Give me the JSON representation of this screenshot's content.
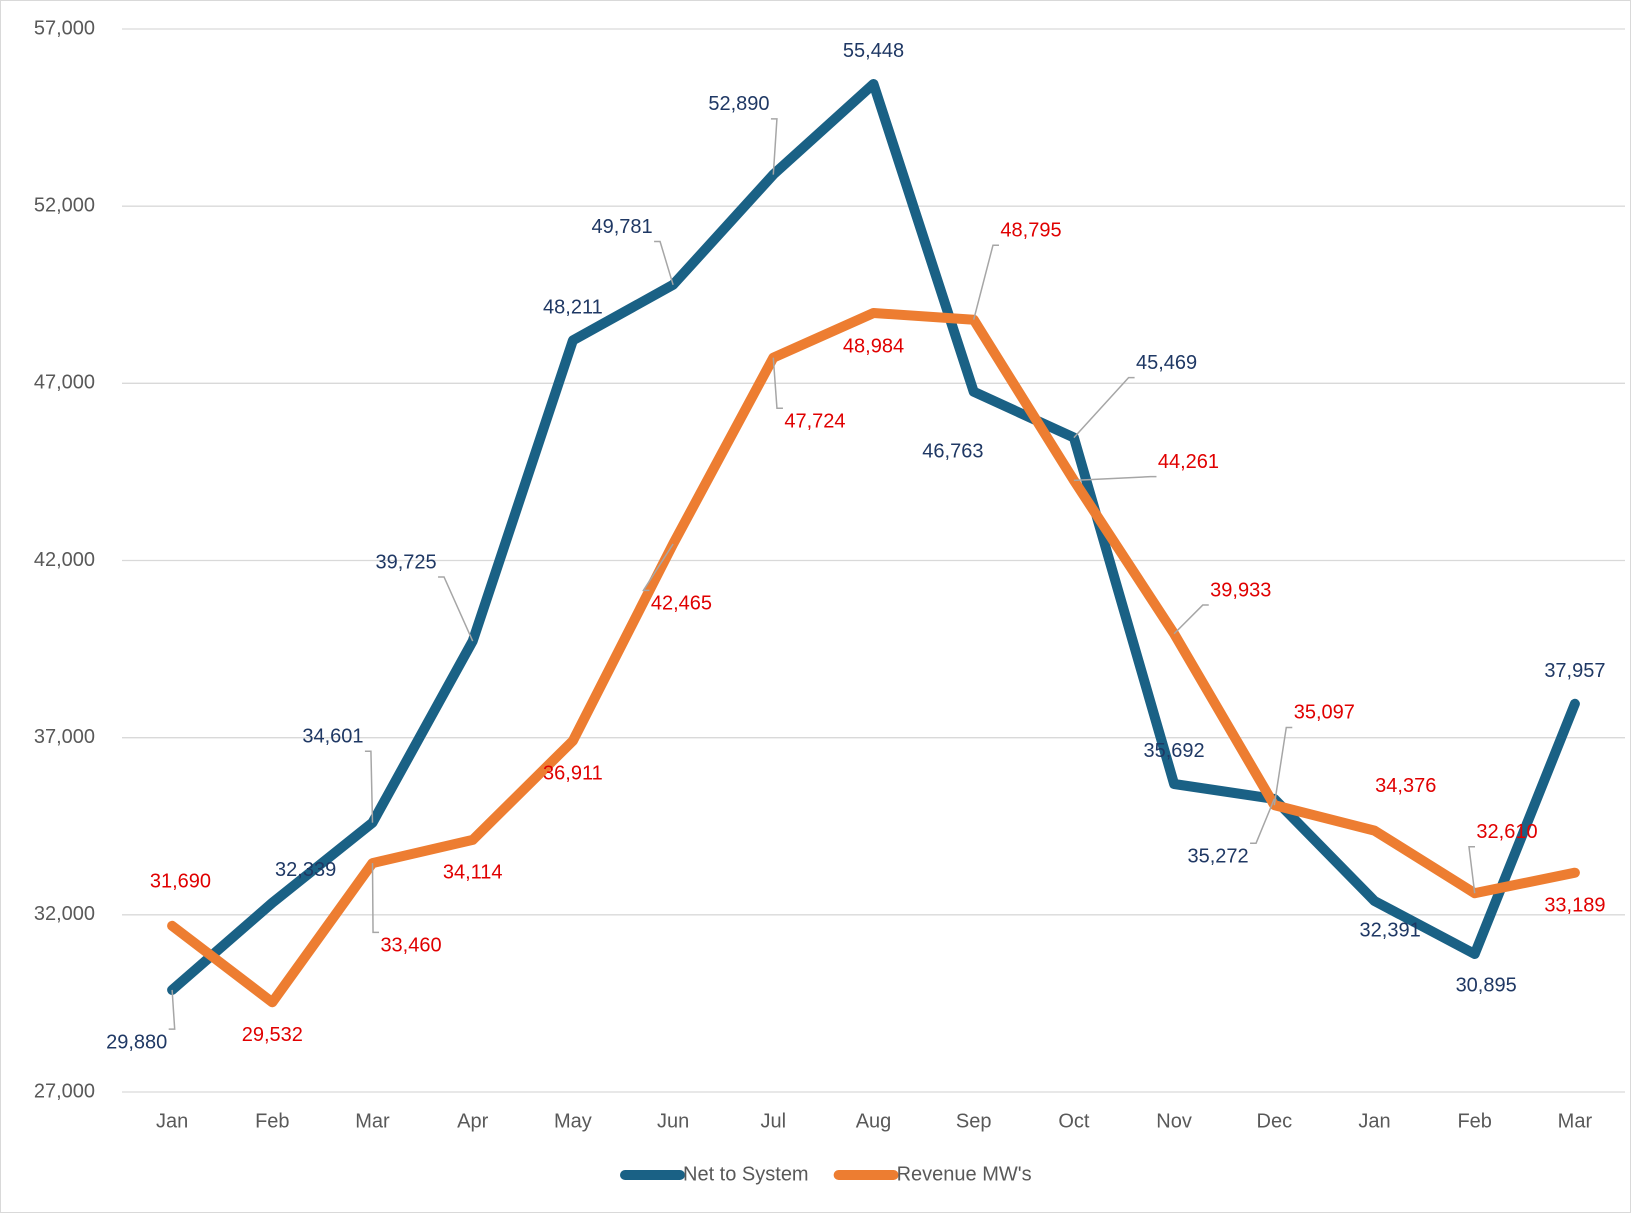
{
  "chart_data": {
    "type": "line",
    "categories": [
      "Jan",
      "Feb",
      "Mar",
      "Apr",
      "May",
      "Jun",
      "Jul",
      "Aug",
      "Sep",
      "Oct",
      "Nov",
      "Dec",
      "Jan",
      "Feb",
      "Mar"
    ],
    "series": [
      {
        "name": "Net to System",
        "color": "#1a6185",
        "values": [
          29880,
          32339,
          34601,
          39725,
          48211,
          49781,
          52890,
          55448,
          46763,
          45469,
          35692,
          35272,
          32391,
          30895,
          37957
        ],
        "value_labels": [
          "29,880",
          "32,339",
          "34,601",
          "39,725",
          "48,211",
          "49,781",
          "52,890",
          "55,448",
          "46,763",
          "45,469",
          "35,692",
          "35,272",
          "32,391",
          "30,895",
          "37,957"
        ]
      },
      {
        "name": "Revenue MW's",
        "color": "#ed7d31",
        "values": [
          31690,
          29532,
          33460,
          34114,
          36911,
          42465,
          47724,
          48984,
          48795,
          44261,
          39933,
          35097,
          34376,
          32610,
          33189
        ],
        "value_labels": [
          "31,690",
          "29,532",
          "33,460",
          "34,114",
          "36,911",
          "42,465",
          "47,724",
          "48,984",
          "48,795",
          "44,261",
          "39,933",
          "35,097",
          "34,376",
          "32,610",
          "33,189"
        ]
      }
    ],
    "ylim": [
      27000,
      57000
    ],
    "yticks": [
      {
        "value": 27000,
        "label": "27,000"
      },
      {
        "value": 32000,
        "label": "32,000"
      },
      {
        "value": 37000,
        "label": "37,000"
      },
      {
        "value": 42000,
        "label": "42,000"
      },
      {
        "value": 47000,
        "label": "47,000"
      },
      {
        "value": 52000,
        "label": "52,000"
      },
      {
        "value": 57000,
        "label": "57,000"
      }
    ],
    "grid": true,
    "legend": "bottom"
  }
}
